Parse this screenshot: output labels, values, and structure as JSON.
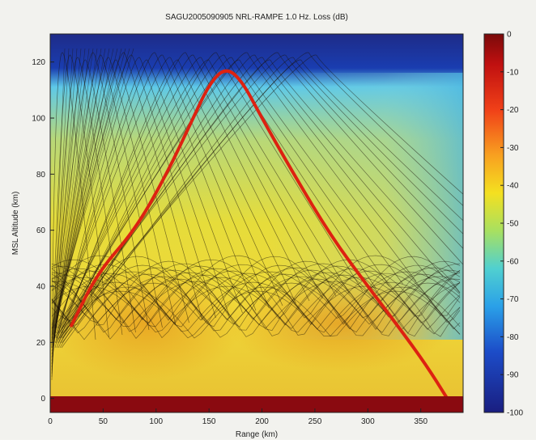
{
  "chart_data": {
    "type": "heatmap",
    "title": "SAGU2005090905 NRL-RAMPE 1.0 Hz. Loss (dB)",
    "xlabel": "Range (km)",
    "ylabel": "MSL Altitude (km)",
    "xlim": [
      0,
      390
    ],
    "ylim": [
      -5,
      130
    ],
    "xticks": [
      "0",
      "50",
      "100",
      "150",
      "200",
      "250",
      "300",
      "350"
    ],
    "yticks": [
      "0",
      "20",
      "40",
      "60",
      "80",
      "100",
      "120"
    ],
    "colorbar": {
      "range": [
        -100,
        0
      ],
      "ticks": [
        "0",
        "-10",
        "-20",
        "-30",
        "-40",
        "-50",
        "-60",
        "-70",
        "-80",
        "-90",
        "-100"
      ]
    },
    "highlighted_ray": {
      "color": "#dd2211",
      "points": [
        [
          20,
          26
        ],
        [
          45,
          45
        ],
        [
          80,
          60
        ],
        [
          110,
          80
        ],
        [
          135,
          100
        ],
        [
          150,
          112
        ],
        [
          165,
          118
        ],
        [
          180,
          114
        ],
        [
          200,
          100
        ],
        [
          230,
          80
        ],
        [
          265,
          58
        ],
        [
          300,
          40
        ],
        [
          330,
          25
        ],
        [
          355,
          12
        ],
        [
          375,
          0
        ]
      ]
    }
  }
}
